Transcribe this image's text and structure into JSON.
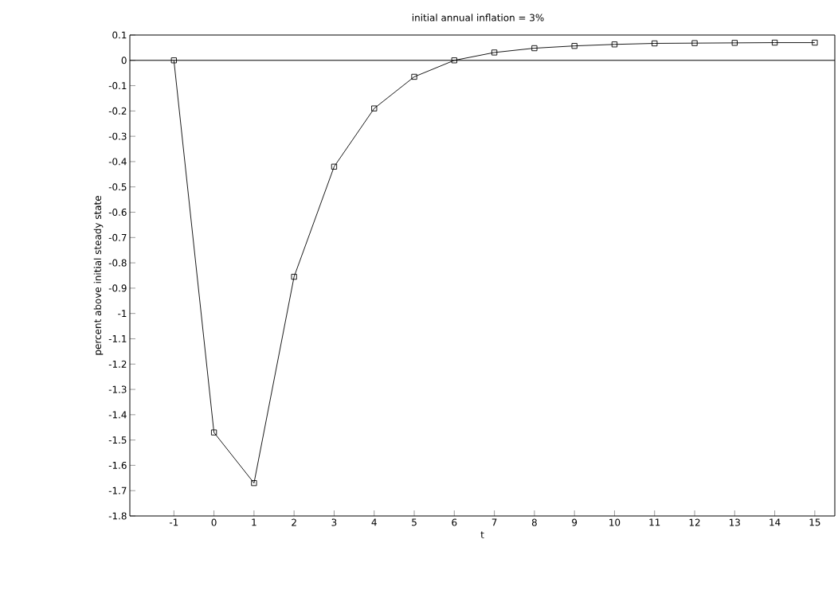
{
  "chart_data": {
    "type": "line",
    "title": "initial annual inflation = 3%",
    "xlabel": "t",
    "ylabel": "percent above initial steady state",
    "x": [
      -1,
      0,
      1,
      2,
      3,
      4,
      5,
      6,
      7,
      8,
      9,
      10,
      11,
      12,
      13,
      14,
      15
    ],
    "values": [
      0,
      -1.47,
      -1.67,
      -0.855,
      -0.42,
      -0.19,
      -0.065,
      0.0,
      0.031,
      0.048,
      0.057,
      0.063,
      0.067,
      0.068,
      0.069,
      0.07,
      0.07
    ],
    "color": "#000000",
    "marker": "square",
    "line_style": "solid",
    "grid": false,
    "xlim": [
      -2.1,
      15.5
    ],
    "ylim": [
      -1.8,
      0.1
    ],
    "xticks": [
      -1,
      0,
      1,
      2,
      3,
      4,
      5,
      6,
      7,
      8,
      9,
      10,
      11,
      12,
      13,
      14,
      15
    ],
    "yticks": [
      0.1,
      0,
      -0.1,
      -0.2,
      -0.3,
      -0.4,
      -0.5,
      -0.6,
      -0.7,
      -0.8,
      -0.9,
      -1,
      -1.1,
      -1.2,
      -1.3,
      -1.4,
      -1.5,
      -1.6,
      -1.7,
      -1.8
    ],
    "ref_lines": [
      {
        "axis": "y",
        "value": 0,
        "color": "#000000"
      }
    ]
  }
}
